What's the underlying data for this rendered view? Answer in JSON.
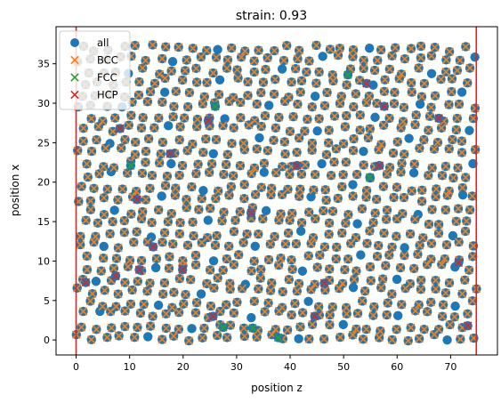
{
  "chart_data": {
    "type": "scatter",
    "title": "strain: 0.93",
    "xlabel": "position z",
    "ylabel": "position x",
    "xlim": [
      -3.75,
      78.75
    ],
    "ylim": [
      -1.9,
      39.7
    ],
    "xticks": [
      0,
      10,
      20,
      30,
      40,
      50,
      60,
      70
    ],
    "yticks": [
      0,
      5,
      10,
      15,
      20,
      25,
      30,
      35
    ],
    "grid": false,
    "legend": {
      "placement": "top-left",
      "entries": [
        {
          "label": "all",
          "marker": "o",
          "color": "#1f77b4"
        },
        {
          "label": "BCC",
          "marker": "x",
          "color": "#ff7f0e"
        },
        {
          "label": "FCC",
          "marker": "x",
          "color": "#2ca02c"
        },
        {
          "label": "HCP",
          "marker": "x",
          "color": "#d62728"
        }
      ]
    },
    "vlines": {
      "x": [
        0,
        74.8
      ],
      "color": "#d62728"
    },
    "lattice": {
      "x_start": 0.5,
      "x_step": 2.55,
      "x_end": 74.8,
      "y_start": 0.3,
      "y_step": 2.95,
      "y_end": 38.0,
      "row_offset": 1.28
    },
    "series": [
      {
        "name": "FCC",
        "points": [
          [
            10.2,
            22.1
          ],
          [
            26.0,
            29.6
          ],
          [
            27.5,
            1.6
          ],
          [
            33.0,
            1.5
          ],
          [
            37.8,
            0.3
          ],
          [
            50.8,
            33.6
          ],
          [
            54.9,
            20.6
          ]
        ]
      },
      {
        "name": "HCP",
        "points": [
          [
            1.8,
            7.3
          ],
          [
            7.4,
            8.1
          ],
          [
            8.2,
            26.8
          ],
          [
            11.4,
            17.8
          ],
          [
            11.8,
            8.9
          ],
          [
            14.4,
            11.8
          ],
          [
            17.6,
            23.6
          ],
          [
            19.9,
            8.9
          ],
          [
            24.7,
            27.8
          ],
          [
            25.6,
            3.0
          ],
          [
            32.7,
            16.1
          ],
          [
            41.3,
            22.1
          ],
          [
            44.6,
            3.0
          ],
          [
            46.4,
            7.2
          ],
          [
            54.3,
            32.5
          ],
          [
            56.7,
            22.1
          ],
          [
            57.6,
            29.6
          ],
          [
            67.8,
            28.1
          ],
          [
            71.5,
            9.8
          ],
          [
            73.2,
            1.8
          ]
        ]
      }
    ]
  }
}
